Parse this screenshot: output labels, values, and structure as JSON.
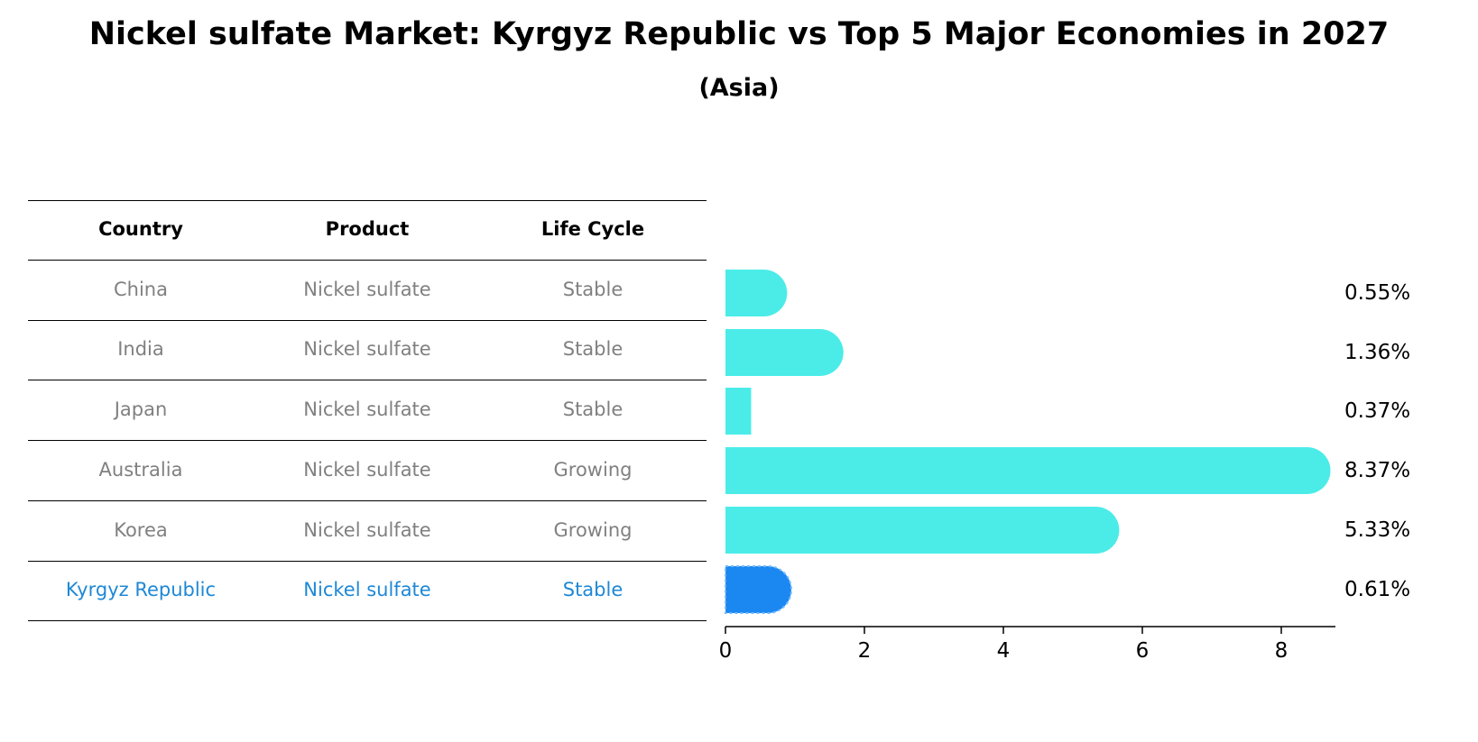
{
  "title": "Nickel sulfate Market: Kyrgyz Republic vs Top 5 Major Economies in 2027",
  "subtitle": "(Asia)",
  "table": {
    "headers": [
      "Country",
      "Product",
      "Life Cycle"
    ],
    "rows": [
      {
        "country": "China",
        "product": "Nickel sulfate",
        "life_cycle": "Stable"
      },
      {
        "country": "India",
        "product": "Nickel sulfate",
        "life_cycle": "Stable"
      },
      {
        "country": "Japan",
        "product": "Nickel sulfate",
        "life_cycle": "Stable"
      },
      {
        "country": "Australia",
        "product": "Nickel sulfate",
        "life_cycle": "Growing"
      },
      {
        "country": "Korea",
        "product": "Nickel sulfate",
        "life_cycle": "Growing"
      },
      {
        "country": "Kyrgyz Republic",
        "product": "Nickel sulfate",
        "life_cycle": "Stable"
      }
    ]
  },
  "colors": {
    "bar": "#4bece8",
    "highlight_bar": "#1b87f1",
    "highlight_text": "#1e88d6",
    "muted_text": "#808080"
  },
  "chart_data": {
    "type": "bar",
    "orientation": "horizontal",
    "categories": [
      "China",
      "India",
      "Japan",
      "Australia",
      "Korea",
      "Kyrgyz Republic"
    ],
    "values": [
      0.55,
      1.36,
      0.37,
      8.37,
      5.33,
      0.61
    ],
    "value_labels": [
      "0.55%",
      "1.36%",
      "0.37%",
      "8.37%",
      "5.33%",
      "0.61%"
    ],
    "highlight": "Kyrgyz Republic",
    "xlim": [
      0,
      8.75
    ],
    "xticks": [
      0,
      2,
      4,
      6,
      8
    ],
    "xlabel": "",
    "ylabel": "",
    "grid": false
  }
}
